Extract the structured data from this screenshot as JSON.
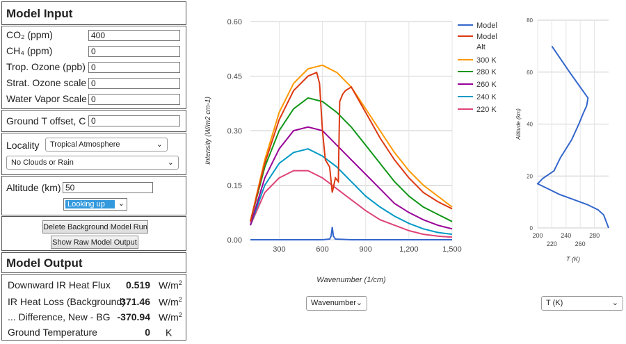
{
  "model_input": {
    "title": "Model Input",
    "co2_label": "CO₂ (ppm)",
    "co2_value": "400",
    "ch4_label": "CH₄ (ppm)",
    "ch4_value": "0",
    "trop_label": "Trop. Ozone (ppb)",
    "trop_value": "0",
    "strat_label": "Strat. Ozone scale",
    "strat_value": "0",
    "water_label": "Water Vapor Scale",
    "water_value": "0",
    "ground_label": "Ground T offset, C",
    "ground_value": "0",
    "locality_label": "Locality",
    "locality_value": "Tropical Atmosphere",
    "clouds_value": "No Clouds or Rain",
    "altitude_label": "Altitude (km)",
    "altitude_value": "50",
    "looking_value": "Looking up",
    "delete_btn": "Delete Background Model Run",
    "raw_btn": "Show Raw Model Output"
  },
  "model_output": {
    "title": "Model Output",
    "rows": [
      {
        "label": "Downward IR Heat Flux",
        "value": "0.519",
        "unit": "W/m",
        "sup": "2"
      },
      {
        "label": "IR Heat Loss (Background)",
        "value": "371.46",
        "unit": "W/m",
        "sup": "2"
      },
      {
        "label": "... Difference, New - BG",
        "value": "-370.94",
        "unit": "W/m",
        "sup": "2"
      },
      {
        "label": "Ground Temperature",
        "value": "0",
        "unit": "K",
        "sup": ""
      }
    ]
  },
  "controls": {
    "xaxis_select": "Wavenumber",
    "profile_select": "T (K)"
  },
  "colors": {
    "model": "#3366cc",
    "model_alt": "#dc3912",
    "t300": "#ff9900",
    "t280": "#109618",
    "t260": "#990099",
    "t240": "#0099c6",
    "t220": "#dd4477"
  },
  "chart_data": [
    {
      "type": "line",
      "xlabel": "Wavenumber (1/cm)",
      "ylabel": "Intensity (W/m2 cm-1)",
      "xlim": [
        100,
        1500
      ],
      "ylim": [
        0,
        0.6
      ],
      "xticks": [
        "300",
        "600",
        "900",
        "1,200",
        "1,500"
      ],
      "yticks": [
        "0.00",
        "0.15",
        "0.30",
        "0.45",
        "0.60"
      ],
      "legend": "right",
      "series": [
        {
          "name": "Model",
          "x": [
            100,
            600,
            650,
            660,
            668,
            676,
            690,
            800,
            1500
          ],
          "y": [
            0.0,
            0.0,
            0.002,
            0.01,
            0.035,
            0.01,
            0.002,
            0.0,
            0.0
          ]
        },
        {
          "name": "Model Alt",
          "x": [
            100,
            200,
            300,
            400,
            500,
            560,
            580,
            600,
            620,
            650,
            668,
            690,
            710,
            720,
            740,
            760,
            800,
            900,
            1000,
            1100,
            1200,
            1300,
            1400,
            1500
          ],
          "y": [
            0.05,
            0.21,
            0.33,
            0.41,
            0.45,
            0.46,
            0.43,
            0.3,
            0.22,
            0.2,
            0.13,
            0.17,
            0.16,
            0.38,
            0.4,
            0.41,
            0.42,
            0.35,
            0.28,
            0.22,
            0.17,
            0.13,
            0.105,
            0.085
          ]
        },
        {
          "name": "300 K",
          "x": [
            100,
            200,
            300,
            400,
            500,
            600,
            700,
            800,
            900,
            1000,
            1100,
            1200,
            1300,
            1400,
            1500
          ],
          "y": [
            0.05,
            0.22,
            0.35,
            0.43,
            0.47,
            0.48,
            0.46,
            0.42,
            0.36,
            0.3,
            0.24,
            0.19,
            0.15,
            0.12,
            0.09
          ]
        },
        {
          "name": "280 K",
          "x": [
            100,
            200,
            300,
            400,
            500,
            600,
            700,
            800,
            900,
            1000,
            1100,
            1200,
            1300,
            1400,
            1500
          ],
          "y": [
            0.05,
            0.2,
            0.3,
            0.36,
            0.39,
            0.38,
            0.35,
            0.31,
            0.26,
            0.21,
            0.16,
            0.12,
            0.09,
            0.07,
            0.05
          ]
        },
        {
          "name": "260 K",
          "x": [
            100,
            200,
            300,
            400,
            500,
            600,
            700,
            800,
            900,
            1000,
            1100,
            1200,
            1300,
            1400,
            1500
          ],
          "y": [
            0.04,
            0.17,
            0.25,
            0.3,
            0.31,
            0.3,
            0.26,
            0.22,
            0.18,
            0.14,
            0.1,
            0.075,
            0.055,
            0.04,
            0.03
          ]
        },
        {
          "name": "240 K",
          "x": [
            100,
            200,
            300,
            400,
            500,
            600,
            700,
            800,
            900,
            1000,
            1100,
            1200,
            1300,
            1400,
            1500
          ],
          "y": [
            0.04,
            0.15,
            0.21,
            0.24,
            0.25,
            0.23,
            0.2,
            0.16,
            0.12,
            0.09,
            0.065,
            0.045,
            0.03,
            0.02,
            0.015
          ]
        },
        {
          "name": "220 K",
          "x": [
            100,
            200,
            300,
            400,
            500,
            600,
            700,
            800,
            900,
            1000,
            1100,
            1200,
            1300,
            1400,
            1500
          ],
          "y": [
            0.04,
            0.13,
            0.17,
            0.19,
            0.19,
            0.17,
            0.14,
            0.11,
            0.08,
            0.055,
            0.04,
            0.025,
            0.015,
            0.01,
            0.007
          ]
        }
      ]
    },
    {
      "type": "line",
      "xlabel": "T (K)",
      "ylabel": "Altitude (km)",
      "xlim": [
        200,
        300
      ],
      "ylim": [
        0,
        80
      ],
      "xticks": [
        "200",
        "220",
        "240",
        "260",
        "280"
      ],
      "yticks": [
        "0",
        "20",
        "40",
        "60",
        "80"
      ],
      "series": [
        {
          "x": [
            220,
            245,
            271,
            269,
            264,
            258,
            248,
            232,
            223,
            207,
            200,
            215,
            230,
            250,
            270,
            285,
            293,
            300
          ],
          "y": [
            70,
            60,
            50,
            47,
            44,
            40,
            34,
            27,
            22,
            19,
            17,
            15,
            13,
            11,
            9,
            7,
            5,
            0
          ]
        }
      ]
    }
  ]
}
